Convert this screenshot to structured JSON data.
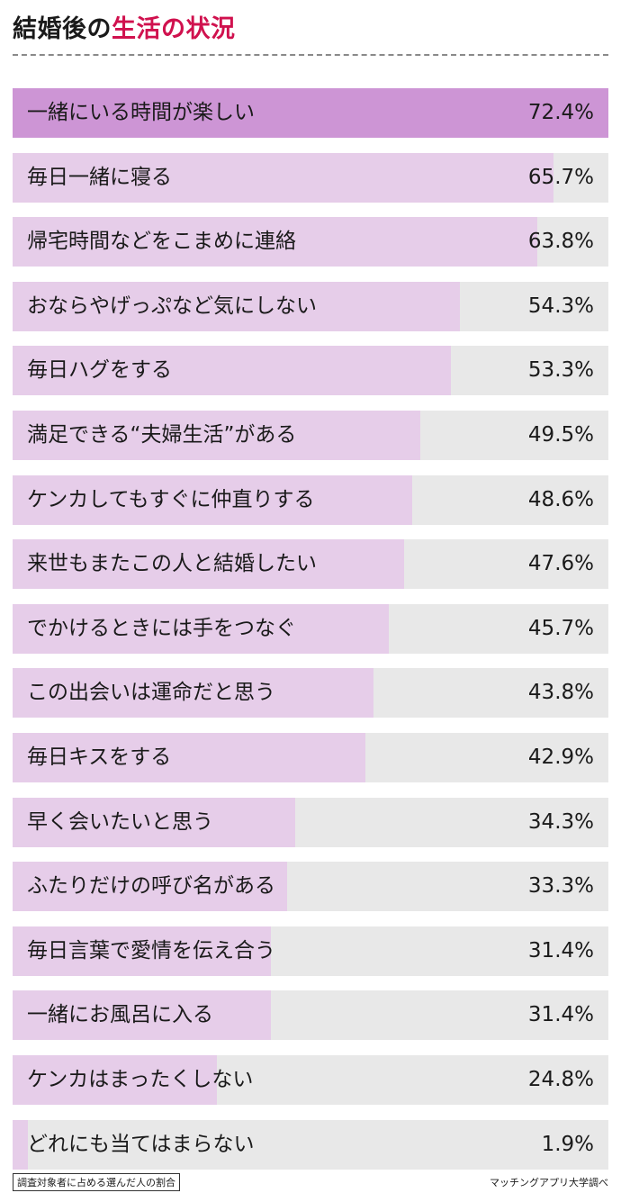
{
  "header": {
    "title_part1": "結婚後の",
    "title_part2": "生活の状況"
  },
  "colors": {
    "accent": "#d0114e",
    "bar_highlight": "#cd95d5",
    "bar_fill": "#e6cde9",
    "bar_track": "#e8e8e8"
  },
  "chart_data": {
    "type": "bar",
    "orientation": "horizontal",
    "xlim": [
      0,
      72.4
    ],
    "categories": [
      "一緒にいる時間が楽しい",
      "毎日一緒に寝る",
      "帰宅時間などをこまめに連絡",
      "おならやげっぷなど気にしない",
      "毎日ハグをする",
      "満足できる“夫婦生活”がある",
      "ケンカしてもすぐに仲直りする",
      "来世もまたこの人と結婚したい",
      "でかけるときには手をつなぐ",
      "この出会いは運命だと思う",
      "毎日キスをする",
      "早く会いたいと思う",
      "ふたりだけの呼び名がある",
      "毎日言葉で愛情を伝え合う",
      "一緒にお風呂に入る",
      "ケンカはまったくしない",
      "どれにも当てはまらない"
    ],
    "values": [
      72.4,
      65.7,
      63.8,
      54.3,
      53.3,
      49.5,
      48.6,
      47.6,
      45.7,
      43.8,
      42.9,
      34.3,
      33.3,
      31.4,
      31.4,
      24.8,
      1.9
    ],
    "value_labels": [
      "72.4%",
      "65.7%",
      "63.8%",
      "54.3%",
      "53.3%",
      "49.5%",
      "48.6%",
      "47.6%",
      "45.7%",
      "43.8%",
      "42.9%",
      "34.3%",
      "33.3%",
      "31.4%",
      "31.4%",
      "24.8%",
      "1.9%"
    ],
    "highlight_index": 0
  },
  "footer": {
    "note": "調査対象者に占める選んだ人の割合",
    "source": "マッチングアプリ大学調べ"
  }
}
